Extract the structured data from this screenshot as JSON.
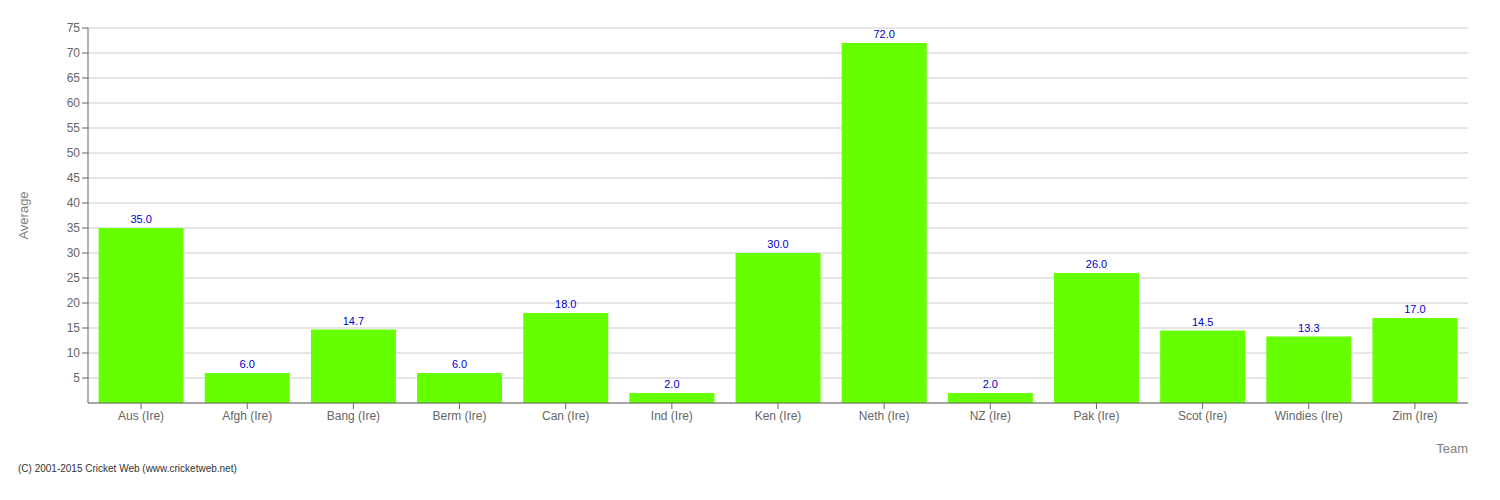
{
  "chart_data": {
    "type": "bar",
    "xlabel": "Team",
    "ylabel": "Average",
    "categories": [
      "Aus (Ire)",
      "Afgh (Ire)",
      "Bang (Ire)",
      "Berm (Ire)",
      "Can (Ire)",
      "Ind (Ire)",
      "Ken (Ire)",
      "Neth (Ire)",
      "NZ (Ire)",
      "Pak (Ire)",
      "Scot (Ire)",
      "Windies (Ire)",
      "Zim (Ire)"
    ],
    "values": [
      35.0,
      6.0,
      14.7,
      6.0,
      18.0,
      2.0,
      30.0,
      72.0,
      2.0,
      26.0,
      14.5,
      13.3,
      17.0
    ],
    "value_labels": [
      "35.0",
      "6.0",
      "14.7",
      "6.0",
      "18.0",
      "2.0",
      "30.0",
      "72.0",
      "2.0",
      "26.0",
      "14.5",
      "13.3",
      "17.0"
    ],
    "data_labels": true,
    "color": "#66ff00",
    "ylim": [
      0,
      75
    ],
    "yticks": [
      5,
      10,
      15,
      20,
      25,
      30,
      35,
      40,
      45,
      50,
      55,
      60,
      65,
      70,
      75
    ],
    "grid": true,
    "annotations": [
      "(C) 2001-2015 Cricket Web (www.cricketweb.net)"
    ]
  }
}
